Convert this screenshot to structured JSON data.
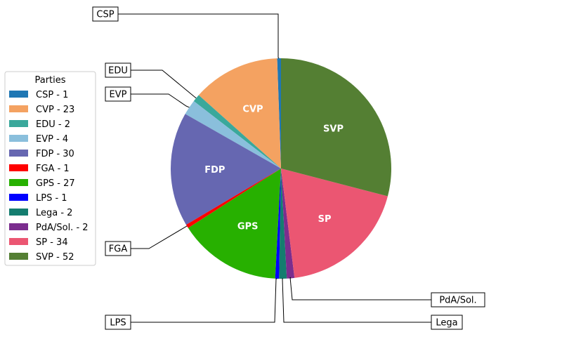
{
  "chart_data": {
    "type": "pie",
    "title": "",
    "legend": {
      "title": "Parties",
      "placement": "left"
    },
    "slices": [
      {
        "name": "CSP",
        "value": 1,
        "legend_label": "CSP - 1",
        "color": "#1f77b4",
        "inside_label": "",
        "callout": "CSP"
      },
      {
        "name": "CVP",
        "value": 23,
        "legend_label": "CVP - 23",
        "color": "#f4a261",
        "inside_label": "CVP",
        "callout": ""
      },
      {
        "name": "EDU",
        "value": 2,
        "legend_label": "EDU - 2",
        "color": "#3aa89b",
        "inside_label": "",
        "callout": "EDU"
      },
      {
        "name": "EVP",
        "value": 4,
        "legend_label": "EVP - 4",
        "color": "#8abfdc",
        "inside_label": "",
        "callout": "EVP"
      },
      {
        "name": "FDP",
        "value": 30,
        "legend_label": "FDP - 30",
        "color": "#6667b1",
        "inside_label": "FDP",
        "callout": ""
      },
      {
        "name": "FGA",
        "value": 1,
        "legend_label": "FGA - 1",
        "color": "#ff0000",
        "inside_label": "",
        "callout": "FGA"
      },
      {
        "name": "GPS",
        "value": 27,
        "legend_label": "GPS - 27",
        "color": "#27b000",
        "inside_label": "GPS",
        "callout": ""
      },
      {
        "name": "LPS",
        "value": 1,
        "legend_label": "LPS - 1",
        "color": "#0000ff",
        "inside_label": "",
        "callout": "LPS"
      },
      {
        "name": "Lega",
        "value": 2,
        "legend_label": "Lega - 2",
        "color": "#147d6f",
        "inside_label": "",
        "callout": "Lega"
      },
      {
        "name": "PdA/Sol.",
        "value": 2,
        "legend_label": "PdA/Sol. - 2",
        "color": "#7b2d8e",
        "inside_label": "",
        "callout": "PdA/Sol."
      },
      {
        "name": "SP",
        "value": 34,
        "legend_label": "SP - 34",
        "color": "#eb5672",
        "inside_label": "SP",
        "callout": ""
      },
      {
        "name": "SVP",
        "value": 52,
        "legend_label": "SVP - 52",
        "color": "#547f33",
        "inside_label": "SVP",
        "callout": ""
      }
    ]
  }
}
